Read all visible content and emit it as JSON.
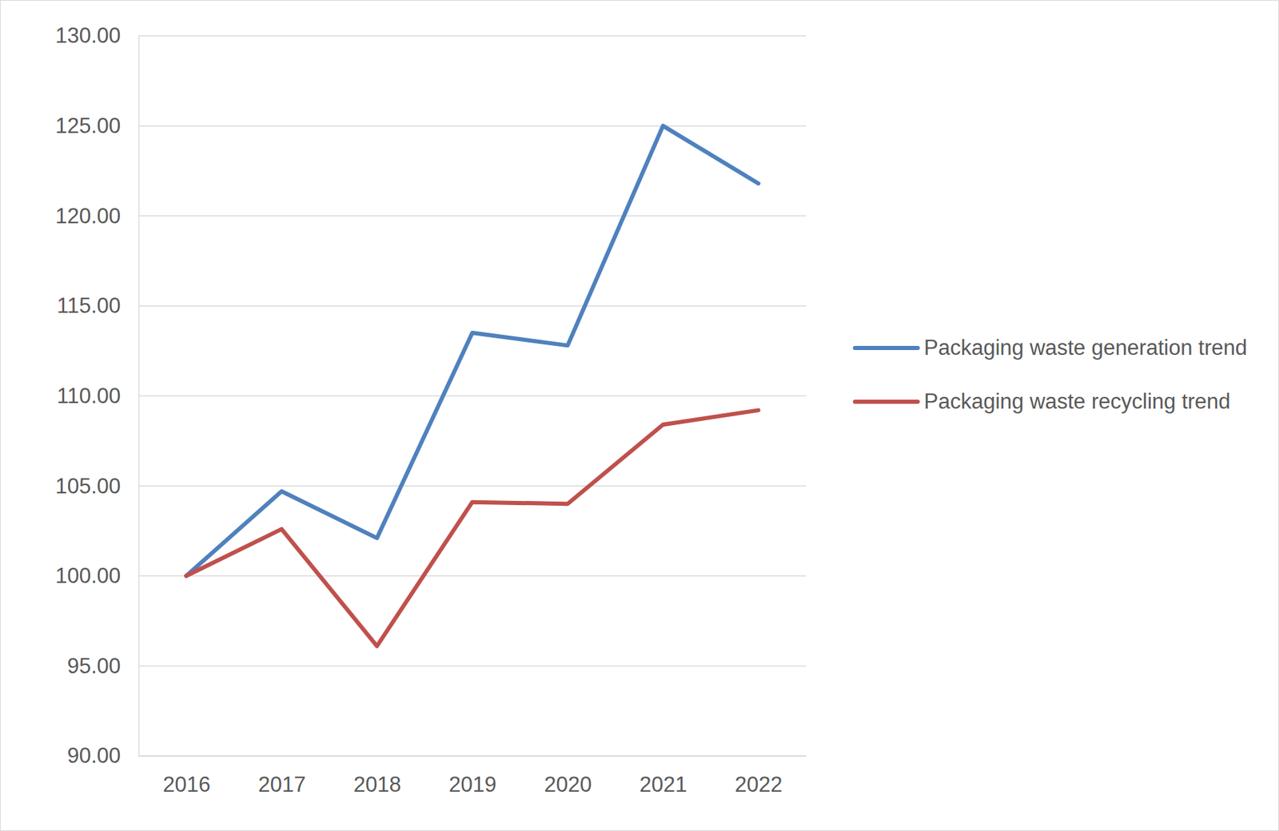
{
  "chart_data": {
    "type": "line",
    "categories": [
      "2016",
      "2017",
      "2018",
      "2019",
      "2020",
      "2021",
      "2022"
    ],
    "series": [
      {
        "name": "Packaging waste generation trend",
        "color": "#4f81bd",
        "values": [
          100.0,
          104.7,
          102.1,
          113.5,
          112.8,
          125.0,
          121.8
        ]
      },
      {
        "name": "Packaging waste recycling trend",
        "color": "#c0504d",
        "values": [
          100.0,
          102.6,
          96.1,
          104.1,
          104.0,
          108.4,
          109.2
        ]
      }
    ],
    "ylim": [
      90,
      130
    ],
    "yticks": [
      {
        "value": 90,
        "label": "90.00"
      },
      {
        "value": 95,
        "label": "95.00"
      },
      {
        "value": 100,
        "label": "100.00"
      },
      {
        "value": 105,
        "label": "105.00"
      },
      {
        "value": 110,
        "label": "110.00"
      },
      {
        "value": 115,
        "label": "115.00"
      },
      {
        "value": 120,
        "label": "120.00"
      },
      {
        "value": 125,
        "label": "125.00"
      },
      {
        "value": 130,
        "label": "130.00"
      }
    ],
    "grid": true,
    "legend": "right"
  }
}
